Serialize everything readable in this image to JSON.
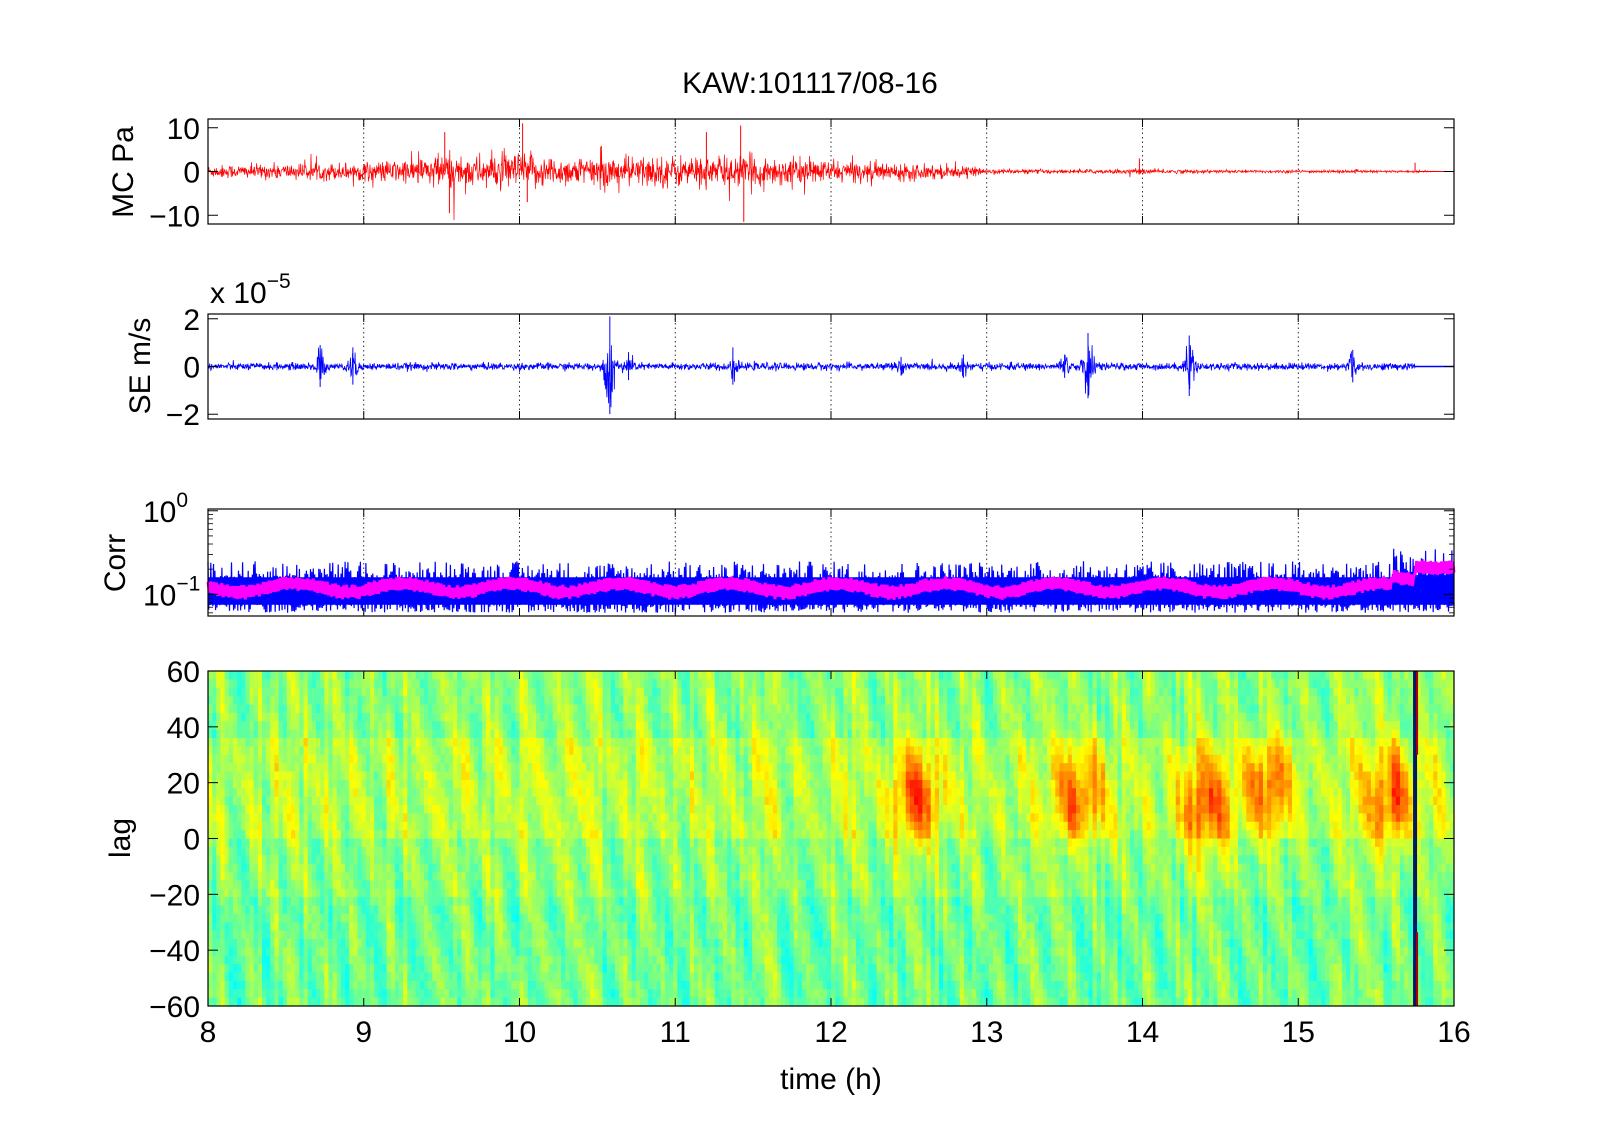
{
  "figure_title": "KAW:101117/08-16",
  "xlabel": "time (h)",
  "x_ticks": [
    "8",
    "9",
    "10",
    "11",
    "12",
    "13",
    "14",
    "15",
    "16"
  ],
  "colors": {
    "mc_trace": "#ff0000",
    "se_trace": "#0000ff",
    "corr_band": "#0000ff",
    "corr_mean": "#ff00ff"
  },
  "chart_data": [
    {
      "type": "line",
      "panel": "MC",
      "ylabel": "MC Pa",
      "xlim": [
        8,
        16
      ],
      "ylim": [
        -12,
        12
      ],
      "y_ticks": [
        "10",
        "0",
        "−10"
      ],
      "grid": "vertical dotted",
      "envelope": {
        "x": [
          8.0,
          8.5,
          9.0,
          9.3,
          9.5,
          9.7,
          10.0,
          10.3,
          10.6,
          11.0,
          11.3,
          11.5,
          12.0,
          12.3,
          12.6,
          12.8,
          13.0,
          13.5,
          14.0,
          14.5,
          15.0,
          15.5,
          15.75,
          16.0
        ],
        "amp": [
          2.0,
          2.5,
          3.0,
          4.0,
          6.0,
          5.0,
          6.0,
          4.5,
          5.0,
          5.0,
          5.0,
          5.0,
          3.5,
          3.0,
          2.5,
          2.0,
          0.8,
          0.6,
          0.8,
          0.5,
          0.5,
          0.4,
          0.3,
          0.0
        ]
      },
      "spikes": [
        {
          "x": 9.52,
          "y": 9
        },
        {
          "x": 9.55,
          "y": -9.5
        },
        {
          "x": 10.02,
          "y": 11
        },
        {
          "x": 10.05,
          "y": -7
        },
        {
          "x": 11.2,
          "y": 9
        },
        {
          "x": 11.42,
          "y": 10.5
        },
        {
          "x": 11.44,
          "y": -11.5
        },
        {
          "x": 13.98,
          "y": 3
        },
        {
          "x": 15.75,
          "y": 2
        }
      ]
    },
    {
      "type": "line",
      "panel": "SE",
      "ylabel": "SE m/s",
      "exponent_label": "x 10",
      "exponent_power": "−5",
      "xlim": [
        8,
        16
      ],
      "ylim": [
        -2.2,
        2.2
      ],
      "y_ticks": [
        "2",
        "0",
        "−2"
      ],
      "grid": "vertical dotted",
      "background_amp": 0.15,
      "events": [
        {
          "x": 8.72,
          "amp": 0.9
        },
        {
          "x": 8.93,
          "amp": 0.8
        },
        {
          "x": 10.58,
          "amp": 2.1
        },
        {
          "x": 10.7,
          "amp": 0.6
        },
        {
          "x": 11.37,
          "amp": 0.8
        },
        {
          "x": 12.45,
          "amp": 0.4
        },
        {
          "x": 12.85,
          "amp": 0.5
        },
        {
          "x": 13.5,
          "amp": 0.5
        },
        {
          "x": 13.65,
          "amp": 1.4
        },
        {
          "x": 14.3,
          "amp": 1.3
        },
        {
          "x": 15.35,
          "amp": 0.7
        }
      ],
      "data_end": 15.75
    },
    {
      "type": "line",
      "panel": "Corr",
      "ylabel": "Corr",
      "yscale": "log",
      "xlim": [
        8,
        16
      ],
      "ylim": [
        0.055,
        1.05
      ],
      "y_ticks": [
        "10^0",
        "10^-1"
      ],
      "grid": "vertical dotted",
      "series": [
        {
          "name": "",
          "color": "#0000ff",
          "baseline": 0.12,
          "upper": 0.25,
          "lower": 0.06
        },
        {
          "name": "",
          "color": "#ff00ff",
          "baseline": 0.12,
          "upper": 0.14,
          "lower": 0.1
        }
      ],
      "tail": {
        "x_start": 15.6,
        "peak": 0.4
      }
    },
    {
      "type": "heatmap",
      "panel": "lag",
      "ylabel": "lag",
      "xlim": [
        8,
        16
      ],
      "ylim": [
        -60,
        60
      ],
      "y_ticks": [
        "60",
        "40",
        "20",
        "0",
        "−20",
        "−40",
        "−60"
      ],
      "colormap": "jet",
      "warm_spots": [
        {
          "x": 12.55,
          "lag": 15
        },
        {
          "x": 13.6,
          "lag": 15
        },
        {
          "x": 14.4,
          "lag": 12
        },
        {
          "x": 14.8,
          "lag": 18
        },
        {
          "x": 15.6,
          "lag": 15
        }
      ],
      "dark_line_x": 15.75
    }
  ]
}
